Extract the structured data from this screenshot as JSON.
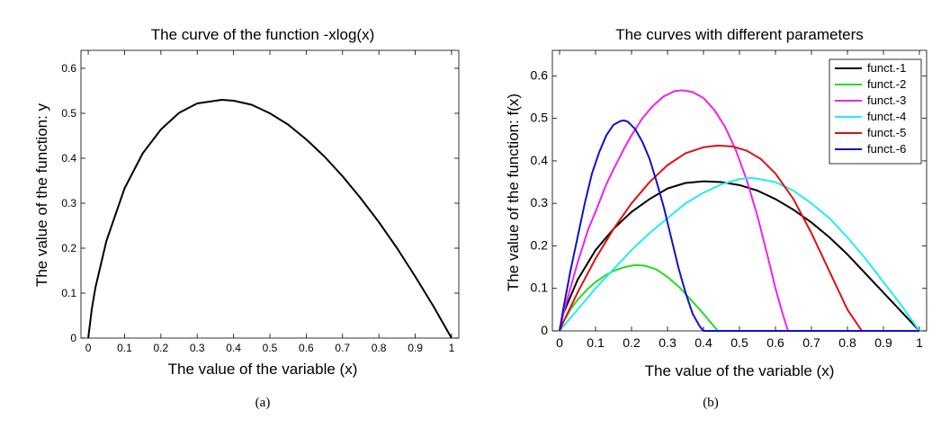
{
  "chart_data": [
    {
      "type": "line",
      "title": "The curve of the function -xlog(x)",
      "xlabel": "The value of the variable (x)",
      "ylabel": "The value of the function: y",
      "xlim": [
        -0.02,
        1.02
      ],
      "ylim": [
        0,
        0.64
      ],
      "xticks": [
        0,
        0.1,
        0.2,
        0.3,
        0.4,
        0.5,
        0.6,
        0.7,
        0.8,
        0.9,
        1
      ],
      "xtick_labels": [
        "0",
        "0.1",
        "0.2",
        "0.3",
        "0.4",
        "0.5",
        "0.6",
        "0.7",
        "0.8",
        "0.9",
        "1"
      ],
      "yticks": [
        0,
        0.1,
        0.2,
        0.3,
        0.4,
        0.5,
        0.6
      ],
      "ytick_labels": [
        "0",
        "0.1",
        "0.2",
        "0.3",
        "0.4",
        "0.5",
        "0.6"
      ],
      "grid": false,
      "caption": "(a)",
      "series": [
        {
          "color": "#000000",
          "x": [
            0,
            0.01,
            0.02,
            0.05,
            0.1,
            0.15,
            0.2,
            0.25,
            0.3,
            0.3679,
            0.4,
            0.45,
            0.5,
            0.55,
            0.6,
            0.65,
            0.7,
            0.75,
            0.8,
            0.85,
            0.9,
            0.95,
            1
          ],
          "y": [
            0,
            0.066,
            0.113,
            0.216,
            0.333,
            0.411,
            0.464,
            0.501,
            0.522,
            0.53,
            0.528,
            0.519,
            0.5,
            0.475,
            0.442,
            0.404,
            0.36,
            0.311,
            0.258,
            0.2,
            0.137,
            0.071,
            0
          ]
        }
      ]
    },
    {
      "type": "line",
      "title": "The curves with different parameters",
      "xlabel": "The value of the variable (x)",
      "ylabel": "The value of the function: f(x)",
      "xlim": [
        -0.02,
        1.02
      ],
      "ylim": [
        0,
        0.66
      ],
      "xticks": [
        0,
        0.1,
        0.2,
        0.3,
        0.4,
        0.5,
        0.6,
        0.7,
        0.8,
        0.9,
        1
      ],
      "xtick_labels": [
        "0",
        "0.1",
        "0.2",
        "0.3",
        "0.4",
        "0.5",
        "0.6",
        "0.7",
        "0.8",
        "0.9",
        "1"
      ],
      "yticks": [
        0,
        0.1,
        0.2,
        0.3,
        0.4,
        0.5,
        0.6
      ],
      "ytick_labels": [
        "0",
        "0.1",
        "0.2",
        "0.3",
        "0.4",
        "0.5",
        "0.6"
      ],
      "grid": false,
      "legend_position": "top-right",
      "caption": "(b)",
      "series": [
        {
          "name": "funct.-1",
          "color": "#000000",
          "x": [
            0,
            0.01,
            0.05,
            0.1,
            0.15,
            0.2,
            0.25,
            0.3,
            0.35,
            0.4,
            0.45,
            0.5,
            0.55,
            0.6,
            0.65,
            0.7,
            0.75,
            0.8,
            0.85,
            0.9,
            0.95,
            1
          ],
          "y": [
            0,
            0.04,
            0.12,
            0.19,
            0.24,
            0.28,
            0.31,
            0.335,
            0.348,
            0.352,
            0.35,
            0.343,
            0.33,
            0.31,
            0.285,
            0.255,
            0.22,
            0.18,
            0.135,
            0.09,
            0.045,
            0
          ]
        },
        {
          "name": "funct.-2",
          "color": "#22dd22",
          "x": [
            0,
            0.01,
            0.03,
            0.05,
            0.08,
            0.1,
            0.13,
            0.15,
            0.18,
            0.21,
            0.24,
            0.27,
            0.3,
            0.33,
            0.36,
            0.39,
            0.42,
            0.44,
            0.5,
            0.6,
            0.7,
            0.8,
            0.9,
            1
          ],
          "y": [
            0,
            0.02,
            0.05,
            0.073,
            0.1,
            0.115,
            0.132,
            0.141,
            0.15,
            0.155,
            0.153,
            0.144,
            0.127,
            0.105,
            0.078,
            0.05,
            0.02,
            0,
            0,
            0,
            0,
            0,
            0,
            0
          ]
        },
        {
          "name": "funct.-3",
          "color": "#ee22ee",
          "x": [
            0,
            0.01,
            0.03,
            0.05,
            0.08,
            0.1,
            0.13,
            0.15,
            0.18,
            0.2,
            0.23,
            0.26,
            0.29,
            0.32,
            0.34,
            0.37,
            0.4,
            0.43,
            0.46,
            0.49,
            0.52,
            0.55,
            0.58,
            0.6,
            0.62,
            0.635,
            0.7,
            0.8,
            0.9,
            1
          ],
          "y": [
            0,
            0.04,
            0.1,
            0.16,
            0.24,
            0.28,
            0.345,
            0.38,
            0.43,
            0.46,
            0.5,
            0.53,
            0.552,
            0.564,
            0.566,
            0.562,
            0.548,
            0.52,
            0.48,
            0.425,
            0.355,
            0.27,
            0.17,
            0.1,
            0.04,
            0,
            0,
            0,
            0,
            0
          ]
        },
        {
          "name": "funct.-4",
          "color": "#22eeee",
          "x": [
            0,
            0.01,
            0.05,
            0.1,
            0.15,
            0.2,
            0.25,
            0.3,
            0.35,
            0.4,
            0.45,
            0.5,
            0.53,
            0.55,
            0.6,
            0.65,
            0.7,
            0.75,
            0.8,
            0.85,
            0.9,
            0.95,
            1
          ],
          "y": [
            0,
            0.01,
            0.05,
            0.1,
            0.145,
            0.19,
            0.23,
            0.265,
            0.3,
            0.325,
            0.345,
            0.357,
            0.36,
            0.358,
            0.35,
            0.33,
            0.3,
            0.265,
            0.22,
            0.17,
            0.115,
            0.06,
            0
          ]
        },
        {
          "name": "funct.-5",
          "color": "#dd1111",
          "x": [
            0,
            0.01,
            0.05,
            0.1,
            0.15,
            0.2,
            0.25,
            0.3,
            0.35,
            0.4,
            0.44,
            0.48,
            0.52,
            0.56,
            0.6,
            0.65,
            0.7,
            0.75,
            0.8,
            0.84,
            0.9,
            1
          ],
          "y": [
            0,
            0.02,
            0.09,
            0.17,
            0.24,
            0.3,
            0.35,
            0.39,
            0.418,
            0.432,
            0.436,
            0.434,
            0.424,
            0.404,
            0.37,
            0.31,
            0.23,
            0.14,
            0.05,
            0,
            0,
            0
          ]
        },
        {
          "name": "funct.-6",
          "color": "#1111cc",
          "x": [
            0,
            0.01,
            0.03,
            0.05,
            0.07,
            0.09,
            0.11,
            0.13,
            0.15,
            0.17,
            0.18,
            0.19,
            0.21,
            0.23,
            0.25,
            0.27,
            0.29,
            0.31,
            0.33,
            0.35,
            0.37,
            0.39,
            0.4,
            0.5,
            0.6,
            0.7,
            0.8,
            0.9,
            1
          ],
          "y": [
            0,
            0.05,
            0.14,
            0.22,
            0.3,
            0.37,
            0.42,
            0.46,
            0.485,
            0.494,
            0.495,
            0.492,
            0.475,
            0.445,
            0.405,
            0.35,
            0.29,
            0.22,
            0.15,
            0.09,
            0.04,
            0.01,
            0,
            0,
            0,
            0,
            0,
            0,
            0
          ]
        }
      ]
    }
  ]
}
